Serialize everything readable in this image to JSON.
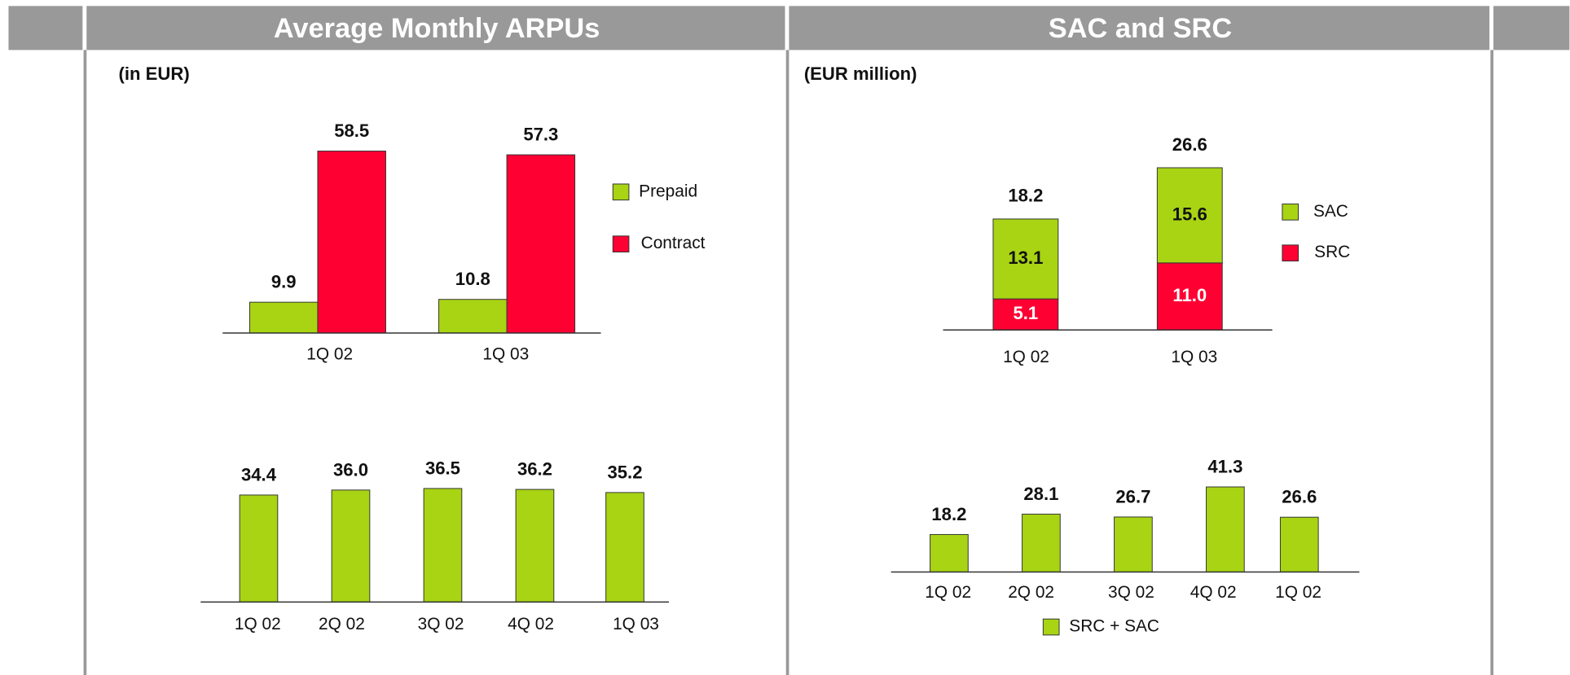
{
  "panels": [
    {
      "title": "Average Monthly ARPUs",
      "subtitle": "(in EUR)"
    },
    {
      "title": "SAC and SRC",
      "subtitle": "(EUR million)"
    }
  ],
  "chart_data": [
    {
      "type": "grouped_bar",
      "categories": [
        "1Q 02",
        "1Q 03"
      ],
      "series": [
        {
          "name": "Prepaid",
          "color": "#a8d414",
          "values": [
            9.9,
            10.8
          ]
        },
        {
          "name": "Contract",
          "color": "#ff0033",
          "values": [
            58.5,
            57.3
          ]
        }
      ]
    },
    {
      "type": "bar",
      "categories": [
        "1Q 02",
        "2Q 02",
        "3Q 02",
        "4Q 02",
        "1Q 03"
      ],
      "series": [
        {
          "color": "#a8d414",
          "values": [
            34.4,
            36.0,
            36.5,
            36.2,
            35.2
          ],
          "value_labels": [
            "34.4",
            "36.0",
            "36.5",
            "36.2",
            "35.2"
          ]
        }
      ]
    },
    {
      "type": "stacked_bar",
      "categories": [
        "1Q 02",
        "1Q 03"
      ],
      "series": [
        {
          "name": "SRC",
          "color": "#ff0033",
          "values": [
            5.1,
            11.0
          ],
          "value_labels": [
            "5.1",
            "11.0"
          ]
        },
        {
          "name": "SAC",
          "color": "#a8d414",
          "values": [
            13.1,
            15.6
          ]
        }
      ],
      "totals": [
        18.2,
        26.6
      ]
    },
    {
      "type": "bar",
      "categories": [
        "1Q 02",
        "2Q 02",
        "3Q 02",
        "4Q 02",
        "1Q 02"
      ],
      "series": [
        {
          "name": "SRC + SAC",
          "color": "#a8d414",
          "values": [
            18.2,
            28.1,
            26.7,
            41.3,
            26.6
          ]
        }
      ]
    }
  ]
}
